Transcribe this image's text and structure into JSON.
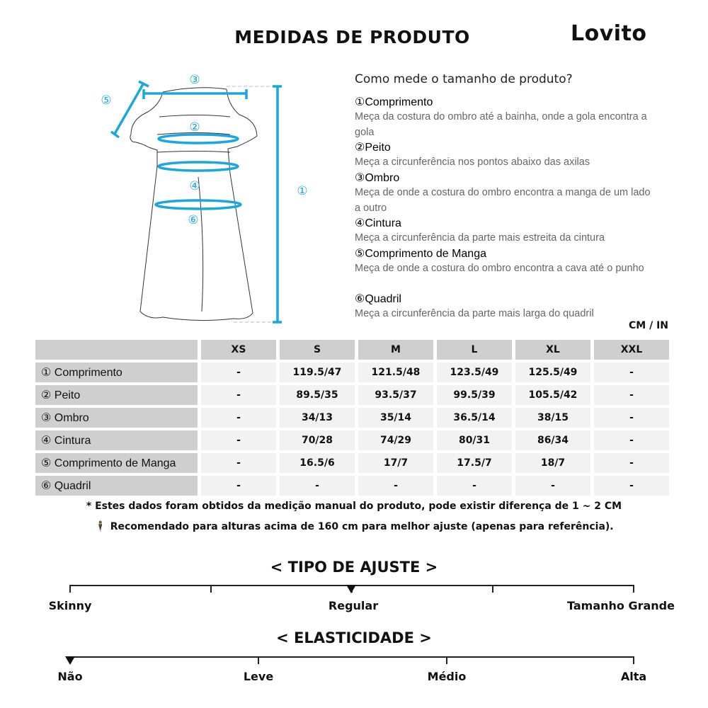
{
  "header": {
    "title": "MEDIDAS DE PRODUTO",
    "brand": "Lovito"
  },
  "diagram": {
    "markers": [
      "①",
      "②",
      "③",
      "④",
      "⑤",
      "⑥"
    ],
    "accent_color": "#1aa7e0"
  },
  "guide": {
    "question": "Como mede o tamanho de produto?",
    "items": [
      {
        "title": "①Comprimento",
        "desc": "Meça da costura do ombro até a bainha, onde a gola encontra a gola"
      },
      {
        "title": "②Peito",
        "desc": "Meça a circunferência nos pontos abaixo das axilas"
      },
      {
        "title": "③Ombro",
        "desc": "Meça de onde a costura do ombro encontra a manga de um lado a outro"
      },
      {
        "title": "④Cintura",
        "desc": "Meça a circunferência da parte mais estreita da cintura"
      },
      {
        "title": "⑤Comprimento de Manga",
        "desc": "Meça de onde a costura do ombro encontra a cava até o punho"
      },
      {
        "title": "⑥Quadril",
        "desc": "Meça a circunferência da parte mais larga do quadril"
      }
    ]
  },
  "unit": "CM / IN",
  "table": {
    "headers": [
      "",
      "XS",
      "S",
      "M",
      "L",
      "XL",
      "XXL"
    ],
    "rows": [
      [
        "① Comprimento",
        "-",
        "119.5/47",
        "121.5/48",
        "123.5/49",
        "125.5/49",
        "-"
      ],
      [
        "② Peito",
        "-",
        "89.5/35",
        "93.5/37",
        "99.5/39",
        "105.5/42",
        "-"
      ],
      [
        "③ Ombro",
        "-",
        "34/13",
        "35/14",
        "36.5/14",
        "38/15",
        "-"
      ],
      [
        "④ Cintura",
        "-",
        "70/28",
        "74/29",
        "80/31",
        "86/34",
        "-"
      ],
      [
        "⑤ Comprimento de Manga",
        "-",
        "16.5/6",
        "17/7",
        "17.5/7",
        "18/7",
        "-"
      ],
      [
        "⑥ Quadril",
        "-",
        "-",
        "-",
        "-",
        "-",
        "-"
      ]
    ]
  },
  "notes": {
    "manual": "* Estes dados foram obtidos da medição manual do produto, pode existir diferença de 1 ~ 2 CM",
    "height": "Recomendado para alturas acima de 160 cm para melhor ajuste (apenas para referência)."
  },
  "fit": {
    "title": "< TIPO DE AJUSTE >",
    "labels": [
      "Skinny",
      "Regular",
      "Tamanho Grande"
    ],
    "selected": "Regular"
  },
  "elasticity": {
    "title": "< ELASTICIDADE >",
    "labels": [
      "Não",
      "Leve",
      "Médio",
      "Alta"
    ],
    "selected": "Não"
  }
}
